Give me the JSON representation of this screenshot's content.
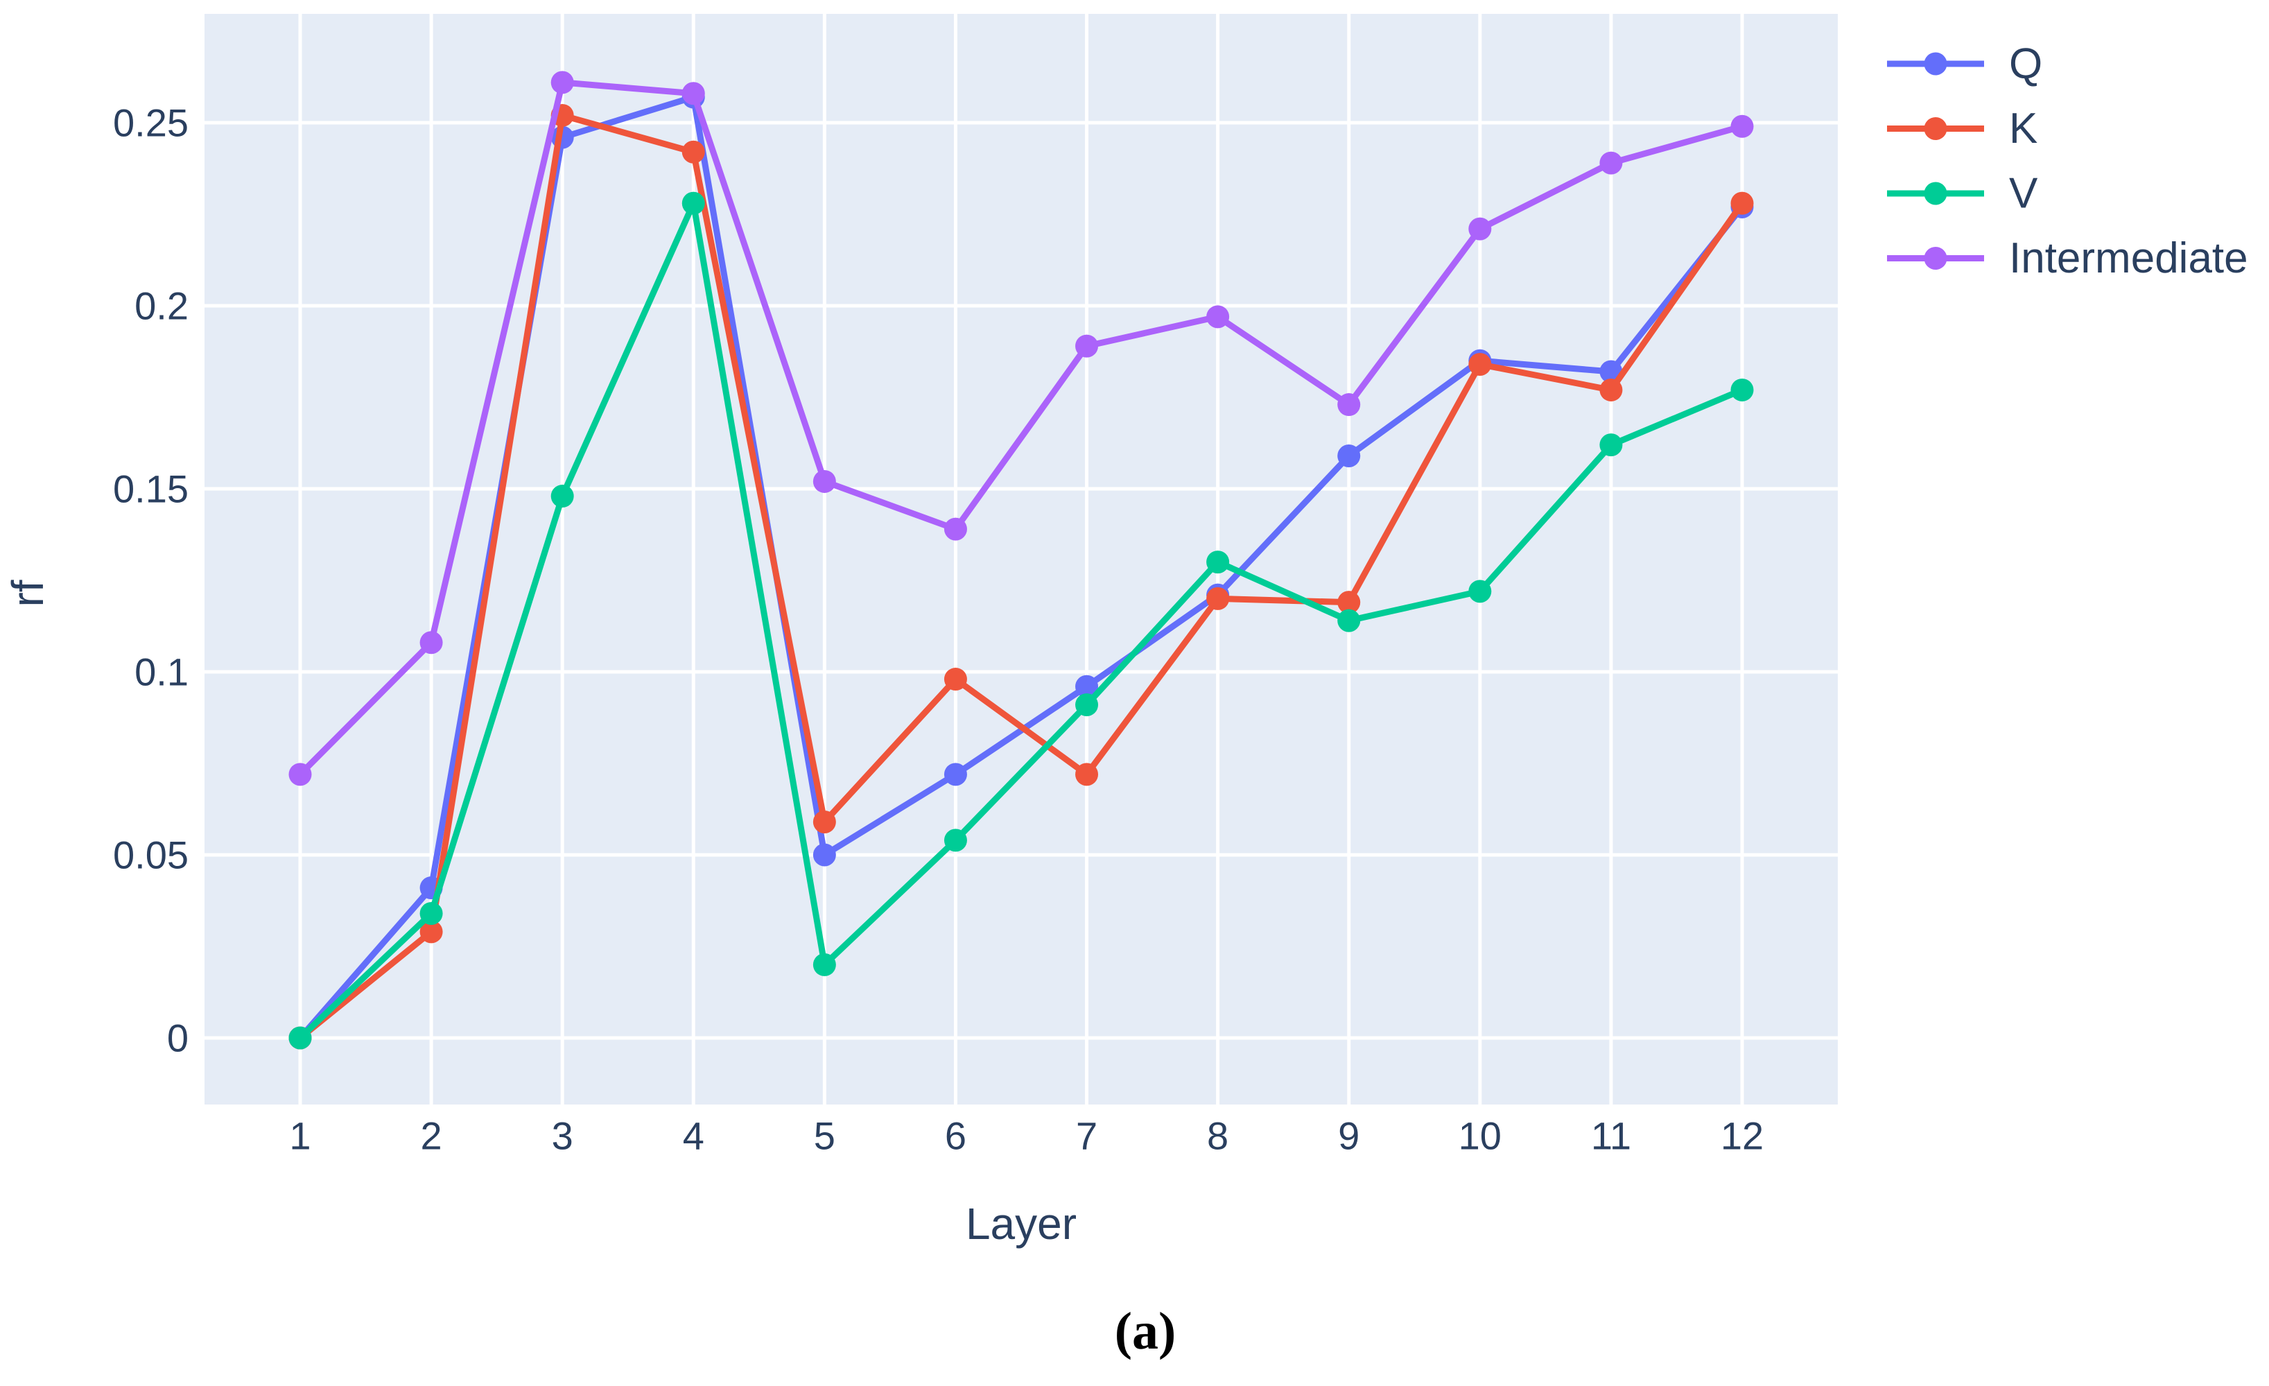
{
  "figure": {
    "xlabel": "Layer",
    "ylabel": "rf",
    "caption": "(a)"
  },
  "colors": {
    "page_background": "#ffffff",
    "plot_background": "#E5ECF6",
    "grid": "#ffffff",
    "text": "#2A3F5F"
  },
  "chart_data": {
    "type": "line",
    "title": "",
    "xlabel": "Layer",
    "ylabel": "rf",
    "x": [
      1,
      2,
      3,
      4,
      5,
      6,
      7,
      8,
      9,
      10,
      11,
      12
    ],
    "xtick_labels": [
      "1",
      "2",
      "3",
      "4",
      "5",
      "6",
      "7",
      "8",
      "9",
      "10",
      "11",
      "12"
    ],
    "yticks": [
      0,
      0.05,
      0.1,
      0.15,
      0.2,
      0.25
    ],
    "ytick_labels": [
      "0",
      "0.05",
      "0.1",
      "0.15",
      "0.2",
      "0.25"
    ],
    "xlim": [
      0.27,
      12.73
    ],
    "ylim": [
      -0.018,
      0.28
    ],
    "grid": true,
    "legend_position": "outside-top-right",
    "marker": "circle",
    "series": [
      {
        "name": "Q",
        "color": "#636EFA",
        "values": [
          0.0,
          0.041,
          0.246,
          0.257,
          0.05,
          0.072,
          0.096,
          0.121,
          0.159,
          0.185,
          0.182,
          0.227
        ]
      },
      {
        "name": "K",
        "color": "#EF553B",
        "values": [
          0.0,
          0.029,
          0.252,
          0.242,
          0.059,
          0.098,
          0.072,
          0.12,
          0.119,
          0.184,
          0.177,
          0.228
        ]
      },
      {
        "name": "V",
        "color": "#00CC96",
        "values": [
          0.0,
          0.034,
          0.148,
          0.228,
          0.02,
          0.054,
          0.091,
          0.13,
          0.114,
          0.122,
          0.162,
          0.177
        ]
      },
      {
        "name": "Intermediate",
        "color": "#AB63FA",
        "values": [
          0.072,
          0.108,
          0.261,
          0.258,
          0.152,
          0.139,
          0.189,
          0.197,
          0.173,
          0.221,
          0.239,
          0.249
        ]
      }
    ]
  }
}
